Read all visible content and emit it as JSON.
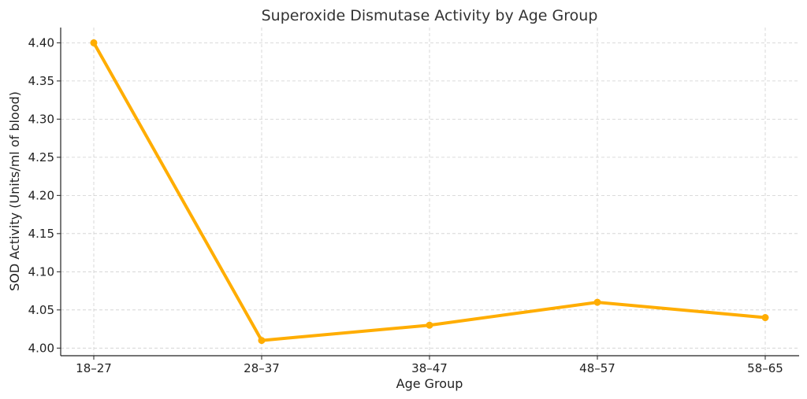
{
  "chart_data": {
    "type": "line",
    "title": "Superoxide Dismutase Activity by Age Group",
    "xlabel": "Age Group",
    "ylabel": "SOD Activity (Units/ml of blood)",
    "categories": [
      "18–27",
      "28–37",
      "38–47",
      "48–57",
      "58–65"
    ],
    "series": [
      {
        "values": [
          4.4,
          4.01,
          4.03,
          4.06,
          4.04
        ]
      }
    ],
    "ylim": [
      3.99,
      4.42
    ],
    "yticks": [
      4.0,
      4.05,
      4.1,
      4.15,
      4.2,
      4.25,
      4.3,
      4.35,
      4.4
    ],
    "grid": true,
    "line_color": "#ffad00",
    "marker": "circle"
  }
}
